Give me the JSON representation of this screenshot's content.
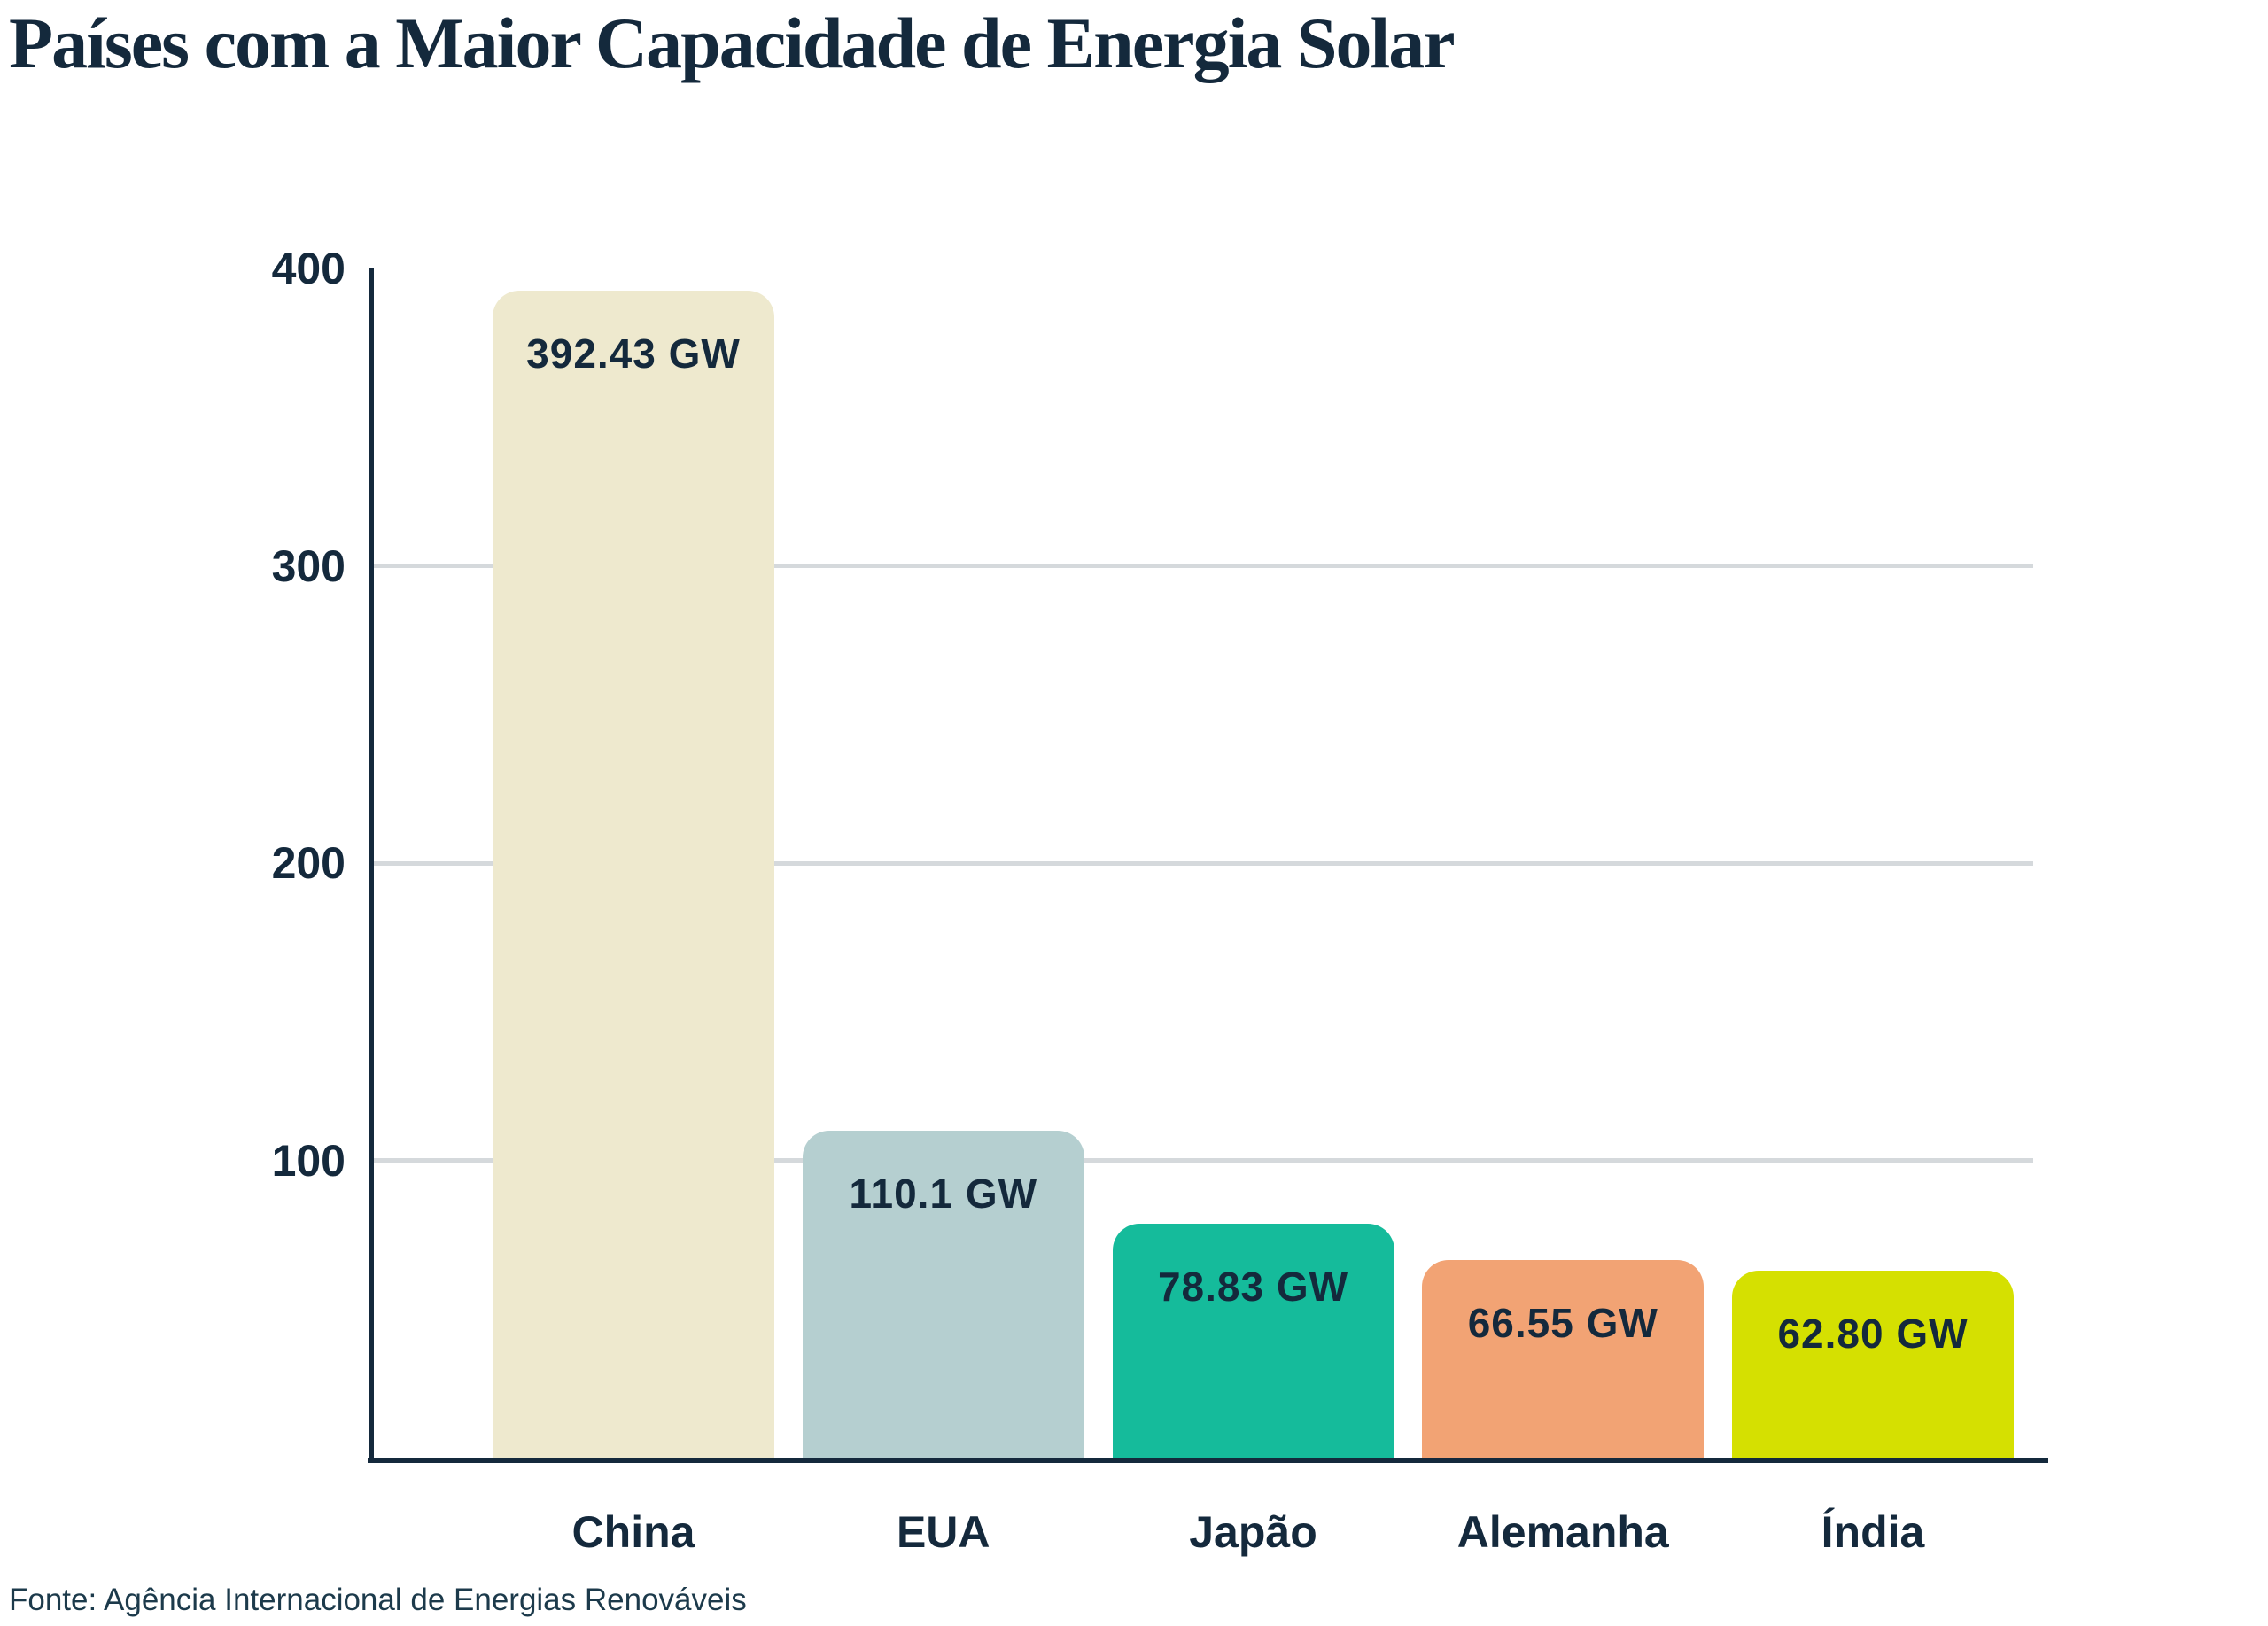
{
  "title": "Países com a Maior Capacidade de Energia Solar",
  "source_note": "Fonte: Agência Internacional de Energias Renováveis",
  "colors": {
    "text_navy": "#14293C",
    "axis": "#14293C",
    "gridline": "#D5D9DC",
    "background": "#FFFFFF"
  },
  "chart_data": {
    "type": "bar",
    "title": "Países com a Maior Capacidade de Energia Solar",
    "categories": [
      "China",
      "EUA",
      "Japão",
      "Alemanha",
      "Índia"
    ],
    "values": [
      392.43,
      110.1,
      78.83,
      66.55,
      62.8
    ],
    "value_labels": [
      "392.43 GW",
      "110.1 GW",
      "78.83 GW",
      "66.55 GW",
      "62.80 GW"
    ],
    "bar_colors": [
      "#EEE9CE",
      "#B5CFD0",
      "#15BB9B",
      "#F2A374",
      "#D5E001"
    ],
    "unit": "GW",
    "xlabel": "",
    "ylabel": "",
    "ylim": [
      0,
      400
    ],
    "yticks": [
      100,
      200,
      300,
      400
    ],
    "gridlines_at": [
      100,
      200,
      300
    ],
    "grid": "horizontal",
    "legend": "none",
    "value_labels_position": "inside-top-center",
    "source": "Fonte: Agência Internacional de Energias Renováveis"
  }
}
